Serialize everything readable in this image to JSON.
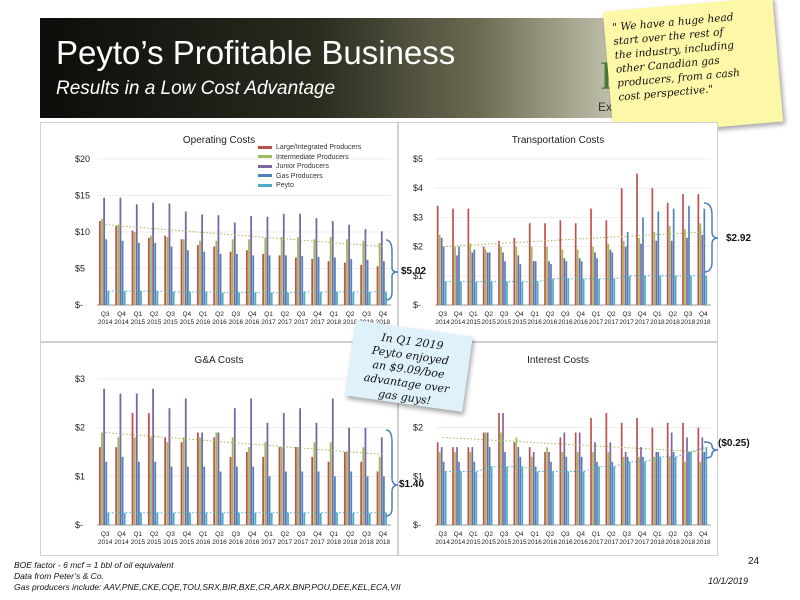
{
  "header": {
    "title": "Peyto’s Profitable Business",
    "subtitle": "Results in a Low Cost Advantage",
    "logo_letter": "P",
    "logo_tag": "Exp"
  },
  "sticky_note": {
    "lines": [
      "\" We have a huge head",
      "start over the rest of",
      "the industry, including",
      "other Canadian gas",
      "producers, from a cash",
      "cost perspective.\""
    ]
  },
  "sticky_note_2": {
    "lines": [
      "In Q1 2019",
      "Peyto enjoyed",
      "an $9.09/boe",
      "advantage over",
      "gas guys!"
    ]
  },
  "legend": {
    "items": [
      {
        "label": "Large/Integrated Producers",
        "color": "#c0504d"
      },
      {
        "label": "Intermediate Producers",
        "color": "#9bbb59"
      },
      {
        "label": "Junior Producers",
        "color": "#8064a2"
      },
      {
        "label": "Gas Producers",
        "color": "#4f81bd"
      },
      {
        "label": "Peyto",
        "color": "#4bacc6"
      }
    ]
  },
  "callouts": {
    "operating": "$5.02",
    "transportation": "$2.92",
    "ga": "$1.40",
    "interest": "($0.25)"
  },
  "footer": {
    "line1": "BOE factor  - 6 mcf = 1 bbl of oil equivalent",
    "line2": "Data from Peter’s & Co.",
    "line3": "Gas producers include: AAV,PNE,CKE,CQE,TOU,SRX,BIR,BXE,CR,ARX,BNP,POU,DEE,KEL,ECA,VII",
    "page": "24",
    "date": "10/1/2019"
  },
  "chart_data": [
    {
      "type": "bar",
      "title": "Operating Costs",
      "ylim": [
        0,
        20
      ],
      "yticks": [
        "$-",
        "$5",
        "$10",
        "$15",
        "$20"
      ],
      "ytick_values": [
        0,
        5,
        10,
        15,
        20
      ],
      "categories": [
        "Q3 2014",
        "Q4 2014",
        "Q1 2015",
        "Q2 2015",
        "Q3 2015",
        "Q4 2015",
        "Q1 2016",
        "Q2 2016",
        "Q3 2016",
        "Q4 2016",
        "Q1 2017",
        "Q2 2017",
        "Q3 2017",
        "Q4 2017",
        "Q1 2018",
        "Q2 2018",
        "Q3 2018",
        "Q4 2018"
      ],
      "tick_top": [
        "Q3",
        "Q4",
        "Q1",
        "Q2",
        "Q3",
        "Q4",
        "Q1",
        "Q2",
        "Q3",
        "Q4",
        "Q1",
        "Q2",
        "Q3",
        "Q4",
        "Q1",
        "Q2",
        "Q3",
        "Q4"
      ],
      "tick_bottom": [
        "2014",
        "2014",
        "2015",
        "2015",
        "2015",
        "2015",
        "2016",
        "2016",
        "2016",
        "2016",
        "2017",
        "2017",
        "2017",
        "2017",
        "2018",
        "2018",
        "2018",
        "2018"
      ],
      "series": [
        {
          "name": "Large/Integrated Producers",
          "values": [
            11.5,
            10.8,
            10.2,
            9.2,
            9.5,
            9.0,
            8.2,
            8.0,
            7.3,
            7.5,
            7.0,
            6.8,
            6.5,
            6.3,
            6.0,
            5.8,
            5.5,
            5.3
          ]
        },
        {
          "name": "Intermediate Producers",
          "values": [
            11.8,
            11.0,
            10.0,
            9.5,
            9.3,
            9.0,
            8.8,
            8.8,
            9.0,
            9.0,
            9.2,
            9.3,
            9.3,
            9.0,
            9.3,
            9.0,
            8.8,
            8.5
          ]
        },
        {
          "name": "Junior Producers",
          "values": [
            14.7,
            14.7,
            13.8,
            14.0,
            13.9,
            12.8,
            12.4,
            12.3,
            11.3,
            12.2,
            12.1,
            12.5,
            12.5,
            11.9,
            11.5,
            11.0,
            10.4,
            10.1
          ]
        },
        {
          "name": "Gas Producers",
          "values": [
            9.0,
            8.8,
            8.5,
            8.5,
            8.0,
            7.5,
            7.3,
            7.0,
            7.0,
            6.8,
            6.8,
            6.8,
            6.7,
            6.6,
            6.5,
            6.3,
            6.2,
            6.0
          ]
        },
        {
          "name": "Peyto",
          "values": [
            1.9,
            1.9,
            1.9,
            1.9,
            1.8,
            1.8,
            1.8,
            1.7,
            1.7,
            1.7,
            1.7,
            1.7,
            1.8,
            1.8,
            1.8,
            1.8,
            1.8,
            1.8
          ]
        }
      ],
      "trend": [
        11.0,
        8.0
      ]
    },
    {
      "type": "bar",
      "title": "Transportation Costs",
      "ylim": [
        0,
        5
      ],
      "yticks": [
        "$-",
        "$1",
        "$2",
        "$3",
        "$4",
        "$5"
      ],
      "ytick_values": [
        0,
        1,
        2,
        3,
        4,
        5
      ],
      "categories": [
        "Q3 2014",
        "Q4 2014",
        "Q1 2015",
        "Q2 2015",
        "Q3 2015",
        "Q4 2015",
        "Q1 2016",
        "Q2 2016",
        "Q3 2016",
        "Q4 2016",
        "Q1 2017",
        "Q2 2017",
        "Q3 2017",
        "Q4 2017",
        "Q1 2018",
        "Q2 2018",
        "Q3 2018",
        "Q4 2018"
      ],
      "tick_top": [
        "Q3",
        "Q4",
        "Q1",
        "Q2",
        "Q3",
        "Q4",
        "Q1",
        "Q2",
        "Q3",
        "Q4",
        "Q1",
        "Q2",
        "Q3",
        "Q4",
        "Q1",
        "Q2",
        "Q3",
        "Q4"
      ],
      "tick_bottom": [
        "2014",
        "2014",
        "2015",
        "2015",
        "2015",
        "2015",
        "2016",
        "2016",
        "2016",
        "2016",
        "2017",
        "2017",
        "2017",
        "2017",
        "2018",
        "2018",
        "2018",
        "2018"
      ],
      "series": [
        {
          "name": "Large/Integrated Producers",
          "values": [
            3.4,
            3.3,
            3.3,
            2.0,
            2.2,
            2.3,
            2.8,
            2.8,
            2.9,
            2.8,
            3.3,
            2.9,
            4.0,
            4.5,
            4.0,
            3.5,
            3.8,
            3.8
          ]
        },
        {
          "name": "Intermediate Producers",
          "values": [
            2.4,
            2.0,
            2.1,
            1.9,
            2.0,
            2.0,
            2.0,
            2.0,
            1.9,
            1.9,
            2.0,
            2.1,
            2.2,
            2.3,
            2.5,
            2.7,
            2.6,
            2.8
          ]
        },
        {
          "name": "Junior Producers",
          "values": [
            2.3,
            1.7,
            1.8,
            1.8,
            1.8,
            1.7,
            1.5,
            1.5,
            1.6,
            1.6,
            1.8,
            1.9,
            2.0,
            2.1,
            2.2,
            2.2,
            2.3,
            2.4
          ]
        },
        {
          "name": "Gas Producers",
          "values": [
            2.0,
            2.0,
            1.9,
            1.8,
            1.5,
            1.4,
            1.5,
            1.4,
            1.5,
            1.5,
            1.6,
            1.8,
            2.5,
            3.0,
            3.2,
            3.3,
            3.4,
            3.3
          ]
        },
        {
          "name": "Peyto",
          "values": [
            0.8,
            0.8,
            0.8,
            0.8,
            0.8,
            0.8,
            0.8,
            0.9,
            0.9,
            0.9,
            0.9,
            0.9,
            1.0,
            1.0,
            1.0,
            1.0,
            1.0,
            1.0
          ]
        }
      ],
      "trend": [
        2.0,
        2.5
      ]
    },
    {
      "type": "bar",
      "title": "G&A Costs",
      "ylim": [
        0,
        3
      ],
      "yticks": [
        "$-",
        "$1",
        "$2",
        "$3"
      ],
      "ytick_values": [
        0,
        1,
        2,
        3
      ],
      "categories": [
        "Q3 2014",
        "Q4 2014",
        "Q1 2015",
        "Q2 2015",
        "Q3 2015",
        "Q4 2015",
        "Q1 2016",
        "Q2 2016",
        "Q3 2016",
        "Q4 2016",
        "Q1 2017",
        "Q2 2017",
        "Q3 2017",
        "Q4 2017",
        "Q1 2018",
        "Q2 2018",
        "Q3 2018",
        "Q4 2018"
      ],
      "tick_top": [
        "Q3",
        "Q4",
        "Q1",
        "Q2",
        "Q3",
        "Q4",
        "Q1",
        "Q2",
        "Q3",
        "Q4",
        "Q1",
        "Q2",
        "Q3",
        "Q4",
        "Q1",
        "Q2",
        "Q3",
        "Q4"
      ],
      "tick_bottom": [
        "2014",
        "2014",
        "2015",
        "2015",
        "2015",
        "2015",
        "2016",
        "2016",
        "2016",
        "2016",
        "2017",
        "2017",
        "2017",
        "2017",
        "2018",
        "2018",
        "2018",
        "2018"
      ],
      "series": [
        {
          "name": "Large/Integrated Producers",
          "values": [
            1.6,
            1.6,
            2.3,
            2.3,
            1.8,
            1.7,
            1.9,
            1.8,
            1.4,
            1.5,
            1.4,
            1.6,
            1.6,
            1.4,
            1.3,
            1.5,
            1.3,
            1.1
          ]
        },
        {
          "name": "Intermediate Producers",
          "values": [
            1.9,
            1.8,
            1.8,
            1.8,
            1.7,
            1.8,
            1.8,
            1.9,
            1.8,
            1.6,
            1.7,
            1.6,
            1.6,
            1.7,
            1.7,
            1.5,
            1.6,
            1.4
          ]
        },
        {
          "name": "Junior Producers",
          "values": [
            2.8,
            2.7,
            2.7,
            2.8,
            2.4,
            2.6,
            1.9,
            1.9,
            2.4,
            2.6,
            2.1,
            2.3,
            2.4,
            2.1,
            2.6,
            2.0,
            2.0,
            1.8
          ]
        },
        {
          "name": "Gas Producers",
          "values": [
            1.3,
            1.4,
            1.3,
            1.3,
            1.2,
            1.2,
            1.2,
            1.1,
            1.2,
            1.2,
            1.0,
            1.1,
            1.1,
            1.1,
            1.0,
            1.1,
            1.0,
            1.0
          ]
        },
        {
          "name": "Peyto",
          "values": [
            0.25,
            0.25,
            0.25,
            0.25,
            0.25,
            0.25,
            0.25,
            0.25,
            0.25,
            0.25,
            0.25,
            0.25,
            0.25,
            0.25,
            0.25,
            0.25,
            0.25,
            0.25
          ]
        }
      ],
      "trend": [
        1.9,
        1.45
      ]
    },
    {
      "type": "bar",
      "title": "Interest Costs",
      "ylim": [
        0,
        3
      ],
      "yticks": [
        "$-",
        "$1",
        "$2"
      ],
      "ytick_values": [
        0,
        1,
        2
      ],
      "categories": [
        "Q3 2014",
        "Q4 2014",
        "Q1 2015",
        "Q2 2015",
        "Q3 2015",
        "Q4 2015",
        "Q1 2016",
        "Q2 2016",
        "Q3 2016",
        "Q4 2016",
        "Q1 2017",
        "Q2 2017",
        "Q3 2017",
        "Q4 2017",
        "Q1 2018",
        "Q2 2018",
        "Q3 2018",
        "Q4 2018"
      ],
      "tick_top": [
        "Q3",
        "Q4",
        "Q1",
        "Q2",
        "Q3",
        "Q4",
        "Q1",
        "Q2",
        "Q3",
        "Q4",
        "Q1",
        "Q2",
        "Q3",
        "Q4",
        "Q1",
        "Q2",
        "Q3",
        "Q4"
      ],
      "tick_bottom": [
        "2014",
        "2014",
        "2015",
        "2015",
        "2015",
        "2015",
        "2016",
        "2016",
        "2016",
        "2016",
        "2017",
        "2017",
        "2017",
        "2017",
        "2018",
        "2018",
        "2018",
        "2018"
      ],
      "series": [
        {
          "name": "Large/Integrated Producers",
          "values": [
            1.7,
            1.6,
            1.6,
            1.9,
            2.3,
            1.7,
            1.6,
            1.5,
            1.8,
            1.9,
            2.2,
            2.3,
            2.1,
            2.2,
            2.0,
            2.1,
            2.1,
            2.0
          ]
        },
        {
          "name": "Intermediate Producers",
          "values": [
            1.5,
            1.5,
            1.5,
            1.9,
            1.9,
            1.8,
            1.4,
            1.6,
            1.5,
            1.5,
            1.5,
            1.5,
            1.4,
            1.4,
            1.4,
            1.4,
            1.3,
            1.3
          ]
        },
        {
          "name": "Junior Producers",
          "values": [
            1.6,
            1.6,
            1.6,
            1.9,
            2.3,
            1.6,
            1.5,
            1.5,
            1.9,
            1.9,
            1.7,
            1.7,
            1.5,
            1.6,
            1.5,
            1.9,
            1.8,
            1.8
          ]
        },
        {
          "name": "Gas Producers",
          "values": [
            1.3,
            1.3,
            1.3,
            1.6,
            1.5,
            1.4,
            1.2,
            1.3,
            1.4,
            1.4,
            1.3,
            1.3,
            1.4,
            1.4,
            1.5,
            1.5,
            1.5,
            1.5
          ]
        },
        {
          "name": "Peyto",
          "values": [
            1.1,
            1.1,
            1.1,
            1.2,
            1.2,
            1.2,
            1.1,
            1.1,
            1.1,
            1.1,
            1.2,
            1.2,
            1.3,
            1.3,
            1.4,
            1.4,
            1.5,
            1.6
          ]
        }
      ],
      "trend": [
        1.8,
        1.5
      ]
    }
  ]
}
